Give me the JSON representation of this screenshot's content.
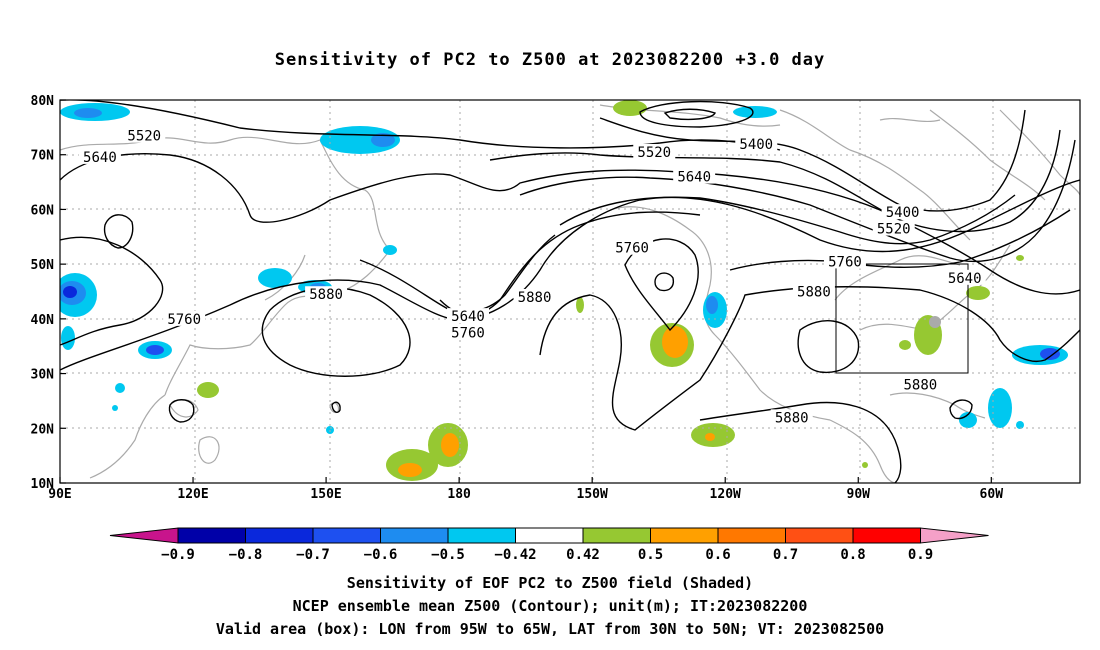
{
  "title": "Sensitivity of PC2 to Z500 at 2023082200 +3.0 day",
  "map": {
    "lat_labels": [
      "80N",
      "70N",
      "60N",
      "50N",
      "40N",
      "30N",
      "20N",
      "10N"
    ],
    "lon_labels": [
      "90E",
      "120E",
      "150E",
      "180",
      "150W",
      "120W",
      "90W",
      "60W"
    ],
    "contour_labels": [
      {
        "text": "5520",
        "lon": 109,
        "lat": 73.5
      },
      {
        "text": "5640",
        "lon": 99,
        "lat": 69.6
      },
      {
        "text": "5520",
        "lon": 224,
        "lat": 70.5
      },
      {
        "text": "5400",
        "lon": 247,
        "lat": 72
      },
      {
        "text": "5640",
        "lon": 233,
        "lat": 66
      },
      {
        "text": "5400",
        "lon": 280,
        "lat": 59.5
      },
      {
        "text": "5520",
        "lon": 278,
        "lat": 56.5
      },
      {
        "text": "5640",
        "lon": 294,
        "lat": 47.5
      },
      {
        "text": "5760",
        "lon": 219,
        "lat": 53
      },
      {
        "text": "5760",
        "lon": 267,
        "lat": 50.5
      },
      {
        "text": "5880",
        "lon": 260,
        "lat": 45
      },
      {
        "text": "5880",
        "lon": 150,
        "lat": 44.5
      },
      {
        "text": "5880",
        "lon": 197,
        "lat": 44
      },
      {
        "text": "5640",
        "lon": 182,
        "lat": 40.5
      },
      {
        "text": "5760",
        "lon": 182,
        "lat": 37.5
      },
      {
        "text": "5760",
        "lon": 118,
        "lat": 40
      },
      {
        "text": "5880",
        "lon": 284,
        "lat": 28
      },
      {
        "text": "5880",
        "lon": 255,
        "lat": 22
      }
    ],
    "valid_box": {
      "lon_west": 265,
      "lon_east": 295,
      "lat_south": 30,
      "lat_north": 50
    }
  },
  "colorbar": {
    "labels": [
      "-0.9",
      "-0.8",
      "-0.7",
      "-0.6",
      "-0.5",
      "-0.42",
      "0.42",
      "0.5",
      "0.6",
      "0.7",
      "0.8",
      "0.9"
    ],
    "colors": [
      "#0000a8",
      "#0a28dc",
      "#1e50f0",
      "#1e8cf0",
      "#00c8f0",
      "#ffffff",
      "#96c832",
      "#ffa000",
      "#ff7800",
      "#ff5014",
      "#ff0000"
    ],
    "low_arrow_color": "#c8148c",
    "high_arrow_color": "#f5a0c8"
  },
  "captions": {
    "line1": "Sensitivity of EOF PC2 to Z500 field (Shaded)",
    "line2": "NCEP ensemble mean Z500 (Contour); unit(m); IT:2023082200",
    "line3": "Valid area (box): LON from 95W to 65W, LAT from 30N to 50N; VT: 2023082500"
  }
}
